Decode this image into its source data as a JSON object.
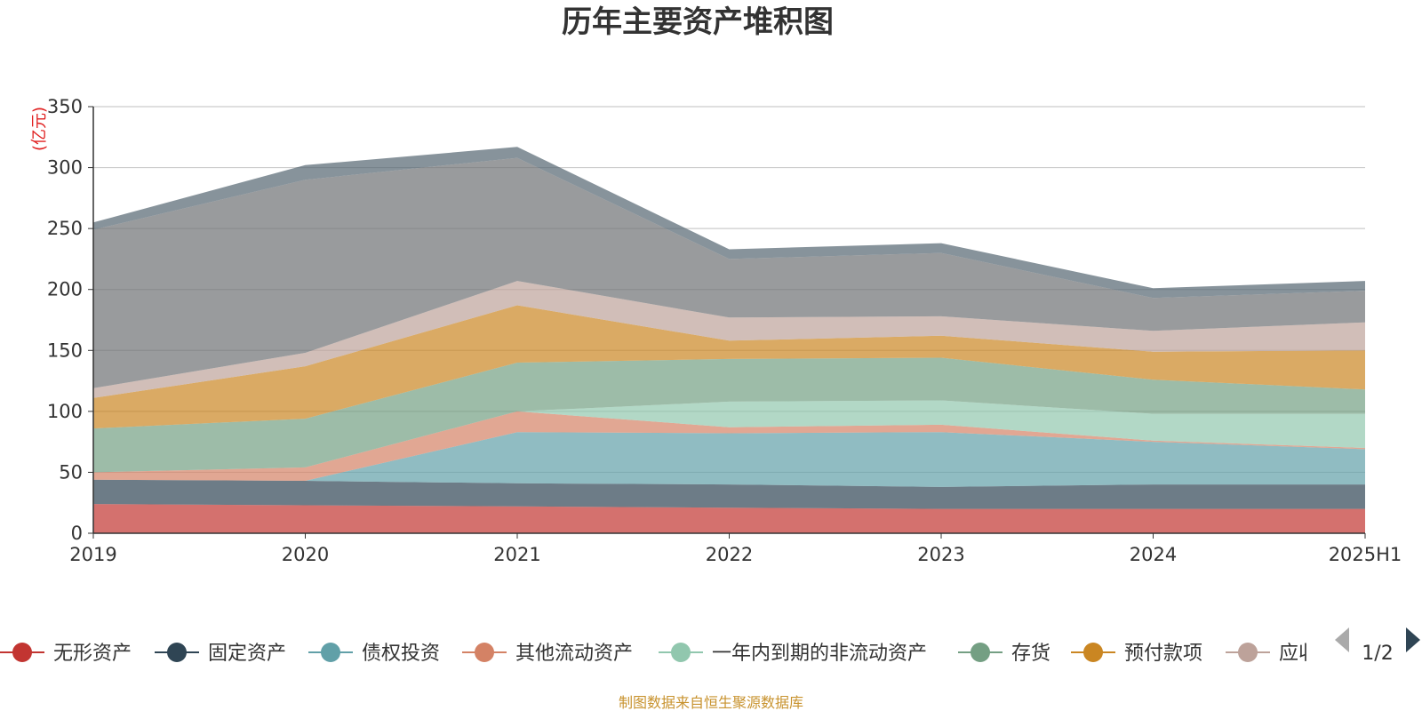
{
  "chart_data": {
    "type": "area",
    "stacked": true,
    "title": "历年主要资产堆积图",
    "unit_label": "(亿元)",
    "ylim": [
      0,
      350
    ],
    "yticks": [
      0,
      50,
      100,
      150,
      200,
      250,
      300,
      350
    ],
    "categories": [
      "2019",
      "2020",
      "2021",
      "2022",
      "2023",
      "2024",
      "2025H1"
    ],
    "grid": true,
    "legend_position": "bottom",
    "legend_page": "1/2",
    "source_note": "制图数据来自恒生聚源数据库",
    "series": [
      {
        "name": "无形资产",
        "color": "#c23531",
        "values": [
          24,
          23,
          22,
          21,
          20,
          20,
          20
        ]
      },
      {
        "name": "固定资产",
        "color": "#2f4554",
        "values": [
          20,
          20,
          19,
          19,
          18,
          20,
          20
        ]
      },
      {
        "name": "债权投资",
        "color": "#61a0a8",
        "values": [
          0,
          0,
          42,
          42,
          45,
          35,
          29
        ]
      },
      {
        "name": "其他流动资产",
        "color": "#d48265",
        "values": [
          6,
          11,
          17,
          5,
          6,
          1,
          1
        ]
      },
      {
        "name": "一年内到期的非流动资产",
        "color": "#91c7ae",
        "values": [
          0,
          0,
          0,
          21,
          20,
          22,
          28
        ]
      },
      {
        "name": "存货",
        "color": "#749f83",
        "values": [
          36,
          40,
          40,
          35,
          35,
          28,
          20
        ]
      },
      {
        "name": "预付款项",
        "color": "#ca8622",
        "values": [
          25,
          43,
          47,
          15,
          18,
          23,
          32
        ]
      },
      {
        "name": "应收账款",
        "color": "#bda29a",
        "values": [
          8,
          11,
          20,
          19,
          16,
          17,
          23
        ]
      },
      {
        "name": "",
        "color": "#6e7074",
        "values": [
          130,
          142,
          101,
          48,
          52,
          27,
          26
        ]
      },
      {
        "name": "",
        "color": "#546570",
        "values": [
          6,
          12,
          9,
          8,
          8,
          8,
          8
        ]
      }
    ]
  }
}
